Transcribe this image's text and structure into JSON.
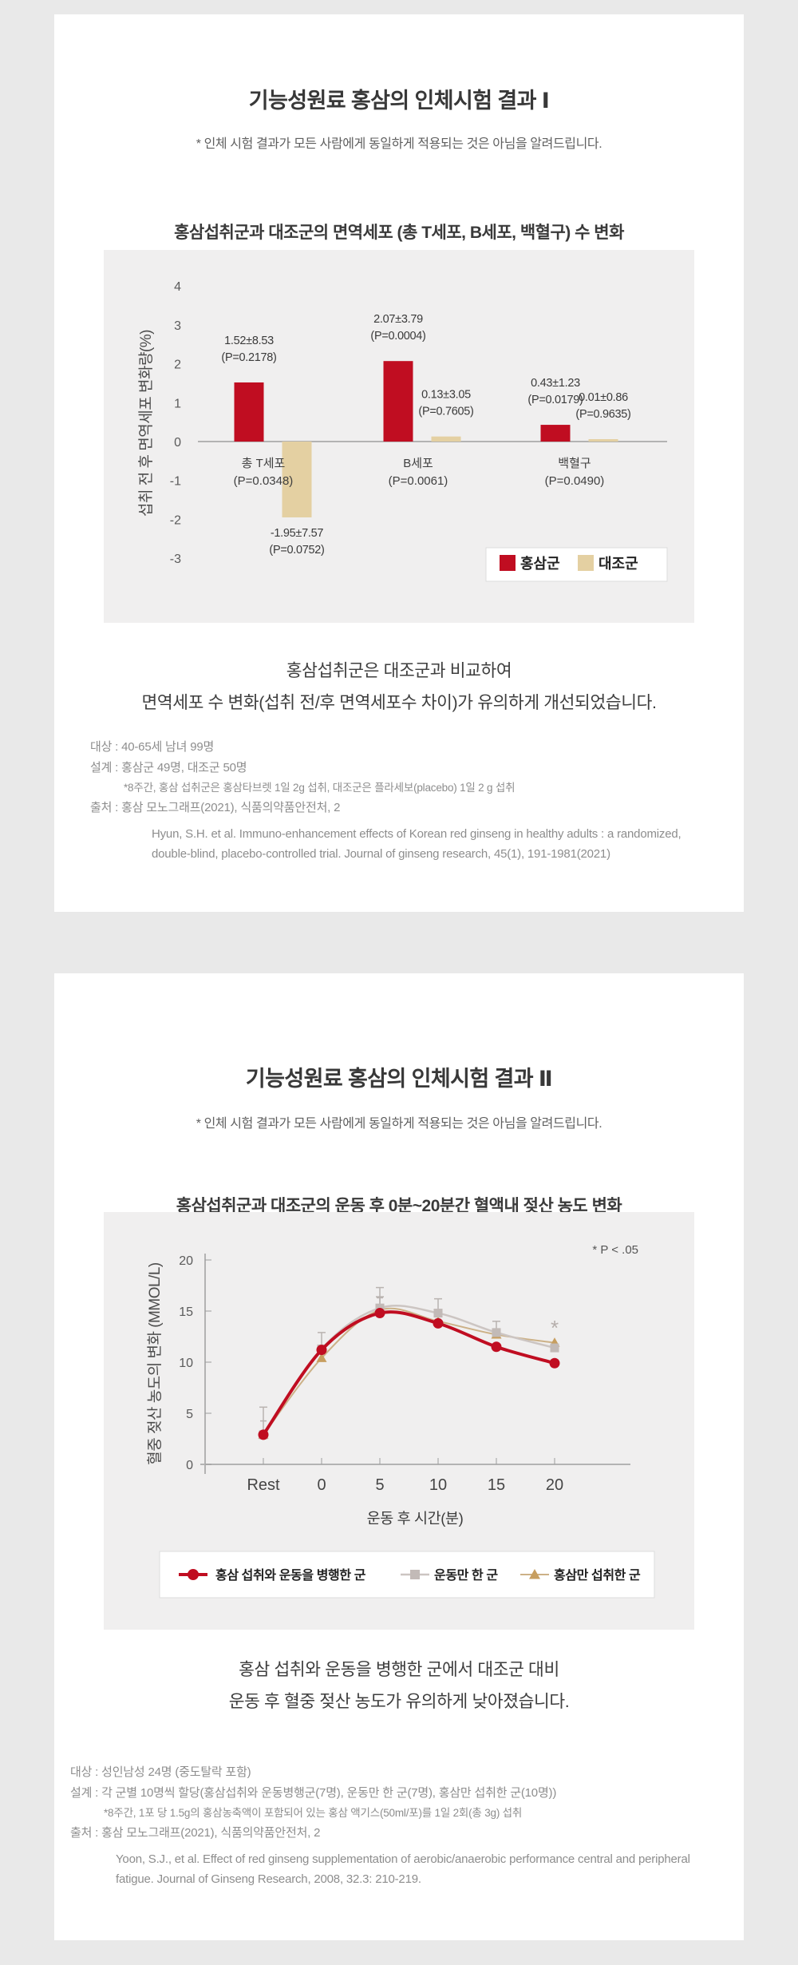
{
  "colors": {
    "page_bg": "#e9e9e9",
    "card_bg": "#ffffff",
    "panel_bg": "#f0efef",
    "red": "#c00d21",
    "tan": "#e4d0a2",
    "gray_line": "#ccc5c2",
    "gray_marker": "#c2bab7",
    "tan_line": "#ccb187",
    "tan_marker": "#c79e5f",
    "axis": "#b3b3b3",
    "error_bar": "#b9b3b0"
  },
  "card1": {
    "title": "기능성원료 홍삼의 인체시험 결과  Ⅰ",
    "disclaimer": "* 인체 시험 결과가 모든 사람에게 동일하게 적용되는 것은 아님을 알려드립니다.",
    "chart_title": "홍삼섭취군과 대조군의 면역세포 (총 T세포, B세포, 백혈구) 수 변화",
    "summary": [
      "홍삼섭취군은 대조군과 비교하여",
      "면역세포 수 변화(섭취 전/후 면역세포수 차이)가 유의하게 개선되었습니다."
    ],
    "footer": {
      "subjects": "대상 : 40-65세 남녀 99명",
      "design": "설계 : 홍삼군 49명, 대조군 50명",
      "design_note": "*8주간, 홍삼 섭취군은 홍삼타브렛 1일 2g 섭취, 대조군은 플라세보(placebo) 1일 2 g 섭취",
      "source": "출처 : 홍삼 모노그래프(2021), 식품의약품안전처, 2",
      "citation": "Hyun, S.H. et al. Immuno-enhancement effects of Korean red ginseng in healthy adults : a randomized, double-blind, placebo-controlled trial. Journal of ginseng research, 45(1), 191-1981(2021)"
    }
  },
  "card2": {
    "title": "기능성원료 홍삼의 인체시험 결과  Ⅱ",
    "disclaimer": "* 인체 시험 결과가 모든 사람에게 동일하게 적용되는 것은 아님을 알려드립니다.",
    "chart_title": "홍삼섭취군과 대조군의 운동 후 0분~20분간 혈액내 젖산 농도 변화",
    "summary": [
      "홍삼 섭취와 운동을 병행한 군에서 대조군 대비",
      "운동 후 혈중 젖산 농도가 유의하게 낮아졌습니다."
    ],
    "footer": {
      "subjects": "대상 : 성인남성 24명 (중도탈락 포함)",
      "design": "설계 : 각 군별 10명씩 할당(홍삼섭취와 운동병행군(7명), 운동만 한 군(7명), 홍삼만 섭취한 군(10명))",
      "design_note": "*8주간, 1포 당 1.5g의 홍삼농축액이 포함되어 있는 홍삼 액기스(50ml/포)를 1일 2회(총 3g) 섭취",
      "source": "출처 : 홍삼 모노그래프(2021), 식품의약품안전처, 2",
      "citation": "Yoon, S.J., et al. Effect of red ginseng supplementation of aerobic/anaerobic performance central and peripheral fatigue. Journal of Ginseng Research, 2008, 32.3: 210-219."
    }
  },
  "chart_data": [
    {
      "type": "bar",
      "title": "홍삼섭취군과 대조군의 면역세포 (총 T세포, B세포, 백혈구) 수 변화",
      "ylabel": "섭취 전 후 면역세포 변화량(%)",
      "ylim": [
        -3,
        4
      ],
      "yticks": [
        4,
        3,
        2,
        1,
        0,
        -1,
        -2,
        -3
      ],
      "grid": false,
      "legend_position": "bottom-right",
      "categories": [
        "총 T세포",
        "B세포",
        "백혈구"
      ],
      "category_p_labels": [
        "(P=0.0348)",
        "(P=0.0061)",
        "(P=0.0490)"
      ],
      "series": [
        {
          "name": "홍삼군",
          "values": [
            1.52,
            2.07,
            0.43
          ],
          "value_labels": [
            "1.52±8.53",
            "2.07±3.79",
            "0.43±1.23"
          ],
          "p_labels": [
            "(P=0.2178)",
            "(P=0.0004)",
            "(P=0.0179)"
          ]
        },
        {
          "name": "대조군",
          "values": [
            -1.95,
            0.13,
            0.01
          ],
          "value_labels": [
            "-1.95±7.57",
            "0.13±3.05",
            "0.01±0.86"
          ],
          "p_labels": [
            "(P=0.0752)",
            "(P=0.7605)",
            "(P=0.9635)"
          ]
        }
      ]
    },
    {
      "type": "line",
      "title": "홍삼섭취군과 대조군의 운동 후 0분~20분간 혈액내 젖산 농도 변화",
      "note": "* P < .05",
      "ylabel": "혈중 젖산 농도의 변화 (MMOL/L)",
      "xlabel": "운동 후 시간(분)",
      "ylim": [
        0,
        20
      ],
      "yticks": [
        0,
        5,
        10,
        15,
        20
      ],
      "x": [
        "Rest",
        "0",
        "5",
        "10",
        "15",
        "20"
      ],
      "legend_position": "bottom",
      "series": [
        {
          "name": "홍삼 섭취와 운동을 병행한 군",
          "marker": "circle",
          "values": [
            2.9,
            11.2,
            14.8,
            13.8,
            11.5,
            9.9
          ],
          "err_up": [
            2.7,
            1.7,
            1.6,
            0,
            0,
            0
          ]
        },
        {
          "name": "운동만 한 군",
          "marker": "square",
          "values": [
            2.9,
            11.3,
            15.3,
            14.8,
            12.9,
            11.4
          ],
          "err_up": [
            0,
            0,
            2.0,
            1.4,
            1.1,
            0
          ]
        },
        {
          "name": "홍삼만 섭취한 군",
          "marker": "triangle",
          "values": [
            2.9,
            10.4,
            15.1,
            14.0,
            12.7,
            11.9
          ],
          "err_up": [
            0,
            0,
            0,
            0,
            0,
            0
          ]
        }
      ],
      "annotation": {
        "x_index": 5,
        "value": 13.3,
        "text": "*"
      }
    }
  ]
}
